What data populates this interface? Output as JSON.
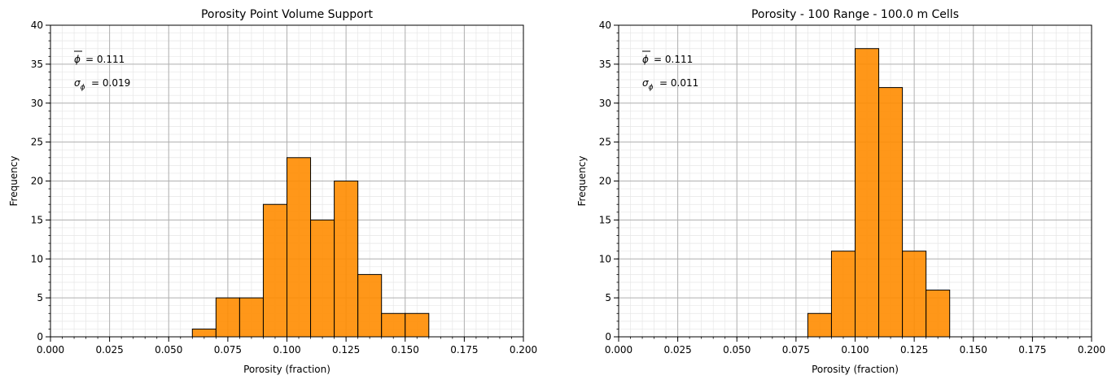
{
  "chart_data": [
    {
      "type": "bar",
      "title": "Porosity Point Volume Support",
      "xlabel": "Porosity (fraction)",
      "ylabel": "Frequency",
      "xlim": [
        0.0,
        0.2
      ],
      "ylim": [
        0,
        40
      ],
      "xticks": [
        "0.000",
        "0.025",
        "0.050",
        "0.075",
        "0.100",
        "0.125",
        "0.150",
        "0.175",
        "0.200"
      ],
      "yticks": [
        "0",
        "5",
        "10",
        "15",
        "20",
        "25",
        "30",
        "35",
        "40"
      ],
      "bin_edges": [
        0.06,
        0.07,
        0.08,
        0.09,
        0.1,
        0.11,
        0.12,
        0.13,
        0.14,
        0.15,
        0.16
      ],
      "values": [
        1,
        5,
        5,
        17,
        23,
        15,
        20,
        8,
        3,
        3
      ],
      "bar_color": "#ff8c00",
      "grid": true,
      "annotations": {
        "mean_label": "= 0.111",
        "std_label": "= 0.019"
      }
    },
    {
      "type": "bar",
      "title": "Porosity - 100 Range - 100.0 m Cells",
      "xlabel": "Porosity (fraction)",
      "ylabel": "Frequency",
      "xlim": [
        0.0,
        0.2
      ],
      "ylim": [
        0,
        40
      ],
      "xticks": [
        "0.000",
        "0.025",
        "0.050",
        "0.075",
        "0.100",
        "0.125",
        "0.150",
        "0.175",
        "0.200"
      ],
      "yticks": [
        "0",
        "5",
        "10",
        "15",
        "20",
        "25",
        "30",
        "35",
        "40"
      ],
      "bin_edges": [
        0.08,
        0.09,
        0.1,
        0.11,
        0.12,
        0.13,
        0.14
      ],
      "values": [
        3,
        11,
        37,
        32,
        11,
        6
      ],
      "bar_color": "#ff8c00",
      "grid": true,
      "annotations": {
        "mean_label": "= 0.111",
        "std_label": "= 0.011"
      }
    }
  ]
}
